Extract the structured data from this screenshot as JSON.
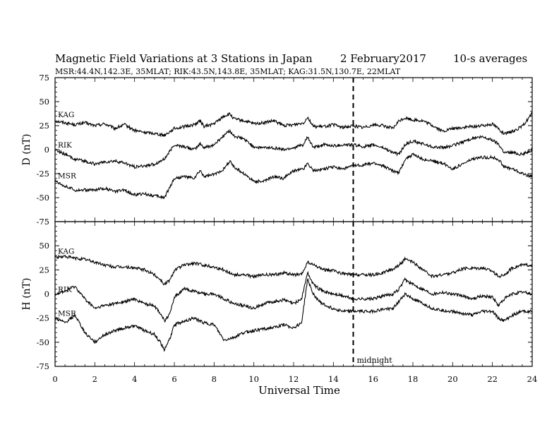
{
  "chart_data": {
    "type": "line",
    "title": "Magnetic Field Variations at 3 Stations in Japan",
    "date_text": "2   February2017",
    "averaging": "10-s averages",
    "subtitle": "MSR:44.4N,142.3E, 35MLAT;  RIK:43.5N,143.8E, 35MLAT;  KAG:31.5N,130.7E, 22MLAT",
    "xlabel": "Universal Time",
    "xlim": [
      0,
      24
    ],
    "xticks": [
      "0",
      "2",
      "4",
      "6",
      "8",
      "10",
      "12",
      "14",
      "16",
      "18",
      "20",
      "22",
      "24"
    ],
    "annotation": {
      "x": 15,
      "text": "midnight",
      "style": "dashed"
    },
    "panels": [
      {
        "id": "D",
        "ylabel": "D (nT)",
        "ylim": [
          -75,
          75
        ],
        "yticks": [
          "75",
          "50",
          "25",
          "0",
          "-25",
          "-50",
          "-75"
        ],
        "series": [
          {
            "name": "KAG",
            "x": [
              0,
              0.5,
              1.0,
              1.5,
              2.0,
              2.5,
              3.0,
              3.5,
              4.0,
              4.5,
              5.0,
              5.5,
              6.0,
              6.5,
              7.0,
              7.3,
              7.5,
              8.0,
              8.5,
              8.8,
              9.0,
              9.5,
              10.0,
              10.5,
              11.0,
              11.5,
              12.0,
              12.5,
              12.7,
              13.0,
              13.5,
              14.0,
              14.5,
              15.0,
              15.5,
              16.0,
              16.5,
              17.0,
              17.3,
              17.6,
              18.0,
              18.5,
              19.0,
              19.5,
              20.0,
              20.5,
              21.0,
              21.5,
              22.0,
              22.3,
              22.6,
              23.0,
              23.5,
              24.0
            ],
            "y": [
              30,
              28,
              26,
              28,
              25,
              27,
              22,
              26,
              20,
              18,
              17,
              15,
              22,
              24,
              26,
              30,
              24,
              27,
              35,
              37,
              32,
              30,
              27,
              28,
              30,
              25,
              26,
              28,
              34,
              24,
              24,
              26,
              23,
              25,
              23,
              26,
              25,
              22,
              30,
              33,
              31,
              30,
              25,
              19,
              22,
              23,
              24,
              25,
              27,
              22,
              16,
              19,
              24,
              38
            ]
          },
          {
            "name": "RIK",
            "x": [
              0,
              0.5,
              1.0,
              1.5,
              2.0,
              2.5,
              3.0,
              3.5,
              4.0,
              4.5,
              5.0,
              5.5,
              6.0,
              6.5,
              7.0,
              7.3,
              7.5,
              8.0,
              8.5,
              8.8,
              9.0,
              9.5,
              10.0,
              10.5,
              11.0,
              11.5,
              12.0,
              12.5,
              12.7,
              13.0,
              13.5,
              14.0,
              14.5,
              15.0,
              15.5,
              16.0,
              16.5,
              17.0,
              17.3,
              17.6,
              18.0,
              18.5,
              19.0,
              19.5,
              20.0,
              20.5,
              21.0,
              21.5,
              22.0,
              22.3,
              22.6,
              23.0,
              23.5,
              24.0
            ],
            "y": [
              0,
              -5,
              -10,
              -12,
              -15,
              -13,
              -12,
              -14,
              -18,
              -17,
              -15,
              -10,
              5,
              3,
              0,
              6,
              2,
              5,
              15,
              20,
              14,
              11,
              3,
              2,
              2,
              0,
              2,
              5,
              13,
              2,
              5,
              4,
              5,
              5,
              3,
              5,
              2,
              -3,
              -5,
              5,
              9,
              6,
              3,
              2,
              4,
              8,
              12,
              13,
              10,
              6,
              -3,
              -3,
              -5,
              0
            ]
          },
          {
            "name": "MSR",
            "x": [
              0,
              0.5,
              1.0,
              1.5,
              2.0,
              2.5,
              3.0,
              3.5,
              4.0,
              4.5,
              5.0,
              5.5,
              6.0,
              6.5,
              7.0,
              7.3,
              7.5,
              8.0,
              8.5,
              8.8,
              9.0,
              9.5,
              10.0,
              10.5,
              11.0,
              11.5,
              12.0,
              12.5,
              12.7,
              13.0,
              13.5,
              14.0,
              14.5,
              15.0,
              15.5,
              16.0,
              16.5,
              17.0,
              17.3,
              17.6,
              18.0,
              18.5,
              19.0,
              19.5,
              20.0,
              20.5,
              21.0,
              21.5,
              22.0,
              22.3,
              22.6,
              23.0,
              23.5,
              24.0
            ],
            "y": [
              -32,
              -38,
              -42,
              -42,
              -42,
              -40,
              -44,
              -42,
              -47,
              -46,
              -48,
              -50,
              -30,
              -28,
              -30,
              -22,
              -28,
              -26,
              -20,
              -12,
              -18,
              -25,
              -33,
              -33,
              -28,
              -30,
              -22,
              -20,
              -14,
              -22,
              -20,
              -18,
              -20,
              -17,
              -16,
              -14,
              -17,
              -22,
              -24,
              -10,
              -5,
              -10,
              -12,
              -14,
              -20,
              -15,
              -10,
              -8,
              -8,
              -10,
              -18,
              -20,
              -25,
              -28
            ]
          }
        ]
      },
      {
        "id": "H",
        "ylabel": "H (nT)",
        "ylim": [
          -75,
          75
        ],
        "yticks": [
          "",
          "50",
          "25",
          "0",
          "-25",
          "-50",
          "-75"
        ],
        "series": [
          {
            "name": "KAG",
            "x": [
              0,
              0.5,
              1.0,
              1.5,
              2.0,
              2.5,
              3.0,
              3.5,
              4.0,
              4.5,
              5.0,
              5.3,
              5.5,
              5.8,
              6.0,
              6.5,
              7.0,
              7.5,
              8.0,
              8.5,
              9.0,
              9.5,
              10.0,
              10.5,
              11.0,
              11.5,
              12.0,
              12.4,
              12.7,
              13.0,
              13.3,
              13.6,
              14.0,
              14.5,
              15.0,
              15.5,
              16.0,
              16.5,
              17.0,
              17.3,
              17.6,
              18.0,
              18.5,
              19.0,
              19.5,
              20.0,
              20.5,
              21.0,
              21.5,
              22.0,
              22.3,
              22.6,
              23.0,
              23.5,
              24.0
            ],
            "y": [
              38,
              39,
              37,
              36,
              33,
              30,
              28,
              28,
              27,
              25,
              20,
              15,
              10,
              15,
              25,
              30,
              32,
              30,
              28,
              25,
              20,
              20,
              18,
              20,
              20,
              22,
              20,
              20,
              33,
              30,
              27,
              25,
              24,
              21,
              20,
              20,
              20,
              22,
              26,
              30,
              36,
              33,
              25,
              18,
              20,
              22,
              26,
              27,
              27,
              24,
              18,
              20,
              27,
              30,
              30
            ]
          },
          {
            "name": "RIK",
            "x": [
              0,
              0.5,
              1.0,
              1.5,
              2.0,
              2.5,
              3.0,
              3.5,
              4.0,
              4.5,
              5.0,
              5.3,
              5.5,
              5.8,
              6.0,
              6.5,
              7.0,
              7.5,
              8.0,
              8.5,
              9.0,
              9.5,
              10.0,
              10.5,
              11.0,
              11.5,
              12.0,
              12.4,
              12.7,
              13.0,
              13.3,
              13.6,
              14.0,
              14.5,
              15.0,
              15.5,
              16.0,
              16.5,
              17.0,
              17.3,
              17.6,
              18.0,
              18.5,
              19.0,
              19.5,
              20.0,
              20.5,
              21.0,
              21.5,
              22.0,
              22.3,
              22.6,
              23.0,
              23.5,
              24.0
            ],
            "y": [
              0,
              3,
              8,
              -5,
              -15,
              -12,
              -10,
              -8,
              -5,
              -10,
              -12,
              -20,
              -28,
              -20,
              -3,
              5,
              3,
              0,
              0,
              -5,
              -10,
              -12,
              -15,
              -10,
              -8,
              -6,
              -10,
              -5,
              22,
              10,
              5,
              2,
              0,
              -2,
              -5,
              -5,
              -5,
              -2,
              0,
              5,
              15,
              10,
              5,
              0,
              2,
              0,
              -2,
              -5,
              -2,
              -3,
              -12,
              -5,
              0,
              2,
              0
            ]
          },
          {
            "name": "MSR",
            "x": [
              0,
              0.5,
              1.0,
              1.5,
              2.0,
              2.5,
              3.0,
              3.5,
              4.0,
              4.5,
              5.0,
              5.3,
              5.5,
              5.8,
              6.0,
              6.5,
              7.0,
              7.5,
              8.0,
              8.5,
              9.0,
              9.5,
              10.0,
              10.5,
              11.0,
              11.5,
              12.0,
              12.4,
              12.7,
              13.0,
              13.3,
              13.6,
              14.0,
              14.5,
              15.0,
              15.5,
              16.0,
              16.5,
              17.0,
              17.3,
              17.6,
              18.0,
              18.5,
              19.0,
              19.5,
              20.0,
              20.5,
              21.0,
              21.5,
              22.0,
              22.3,
              22.6,
              23.0,
              23.5,
              24.0
            ],
            "y": [
              -25,
              -30,
              -22,
              -40,
              -50,
              -42,
              -38,
              -35,
              -33,
              -38,
              -42,
              -50,
              -58,
              -45,
              -32,
              -28,
              -25,
              -30,
              -32,
              -48,
              -45,
              -40,
              -38,
              -36,
              -35,
              -32,
              -35,
              -30,
              15,
              0,
              -8,
              -12,
              -15,
              -18,
              -18,
              -18,
              -18,
              -16,
              -15,
              -8,
              0,
              -5,
              -10,
              -15,
              -17,
              -18,
              -20,
              -22,
              -18,
              -18,
              -25,
              -28,
              -22,
              -18,
              -18
            ]
          }
        ]
      }
    ]
  }
}
